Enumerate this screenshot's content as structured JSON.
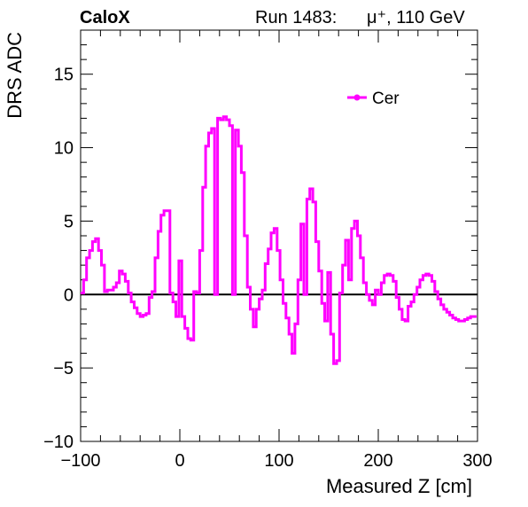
{
  "header": {
    "experiment": "CaloX",
    "run_info": "Run 1483:",
    "particle": "μ⁺, 110 GeV"
  },
  "chart_data": {
    "type": "line",
    "style": "step",
    "xlabel": "Measured Z [cm]",
    "ylabel": "DRS ADC",
    "xlim": [
      -100,
      300
    ],
    "ylim": [
      -10,
      18
    ],
    "xticks": [
      "−100",
      "0",
      "100",
      "200",
      "300"
    ],
    "yticks": [
      "−10",
      "−5",
      "0",
      "5",
      "10",
      "15"
    ],
    "xtick_values": [
      -100,
      0,
      100,
      200,
      300
    ],
    "ytick_values": [
      -10,
      -5,
      0,
      5,
      10,
      15
    ],
    "zero_line": true,
    "legend": {
      "position": "top-right",
      "entries": [
        "Cer"
      ]
    },
    "series": [
      {
        "name": "Cer",
        "color": "#ff00ff",
        "x": [
          -100,
          -97,
          -94,
          -91,
          -88,
          -85,
          -82,
          -79,
          -76,
          -73,
          -70,
          -67,
          -64,
          -61,
          -58,
          -55,
          -52,
          -49,
          -46,
          -43,
          -40,
          -37,
          -34,
          -31,
          -28,
          -25,
          -22,
          -19,
          -16,
          -13,
          -10,
          -7,
          -4,
          -1,
          2,
          5,
          8,
          11,
          14,
          17,
          20,
          23,
          26,
          29,
          32,
          35,
          38,
          41,
          44,
          47,
          50,
          53,
          56,
          59,
          62,
          65,
          68,
          71,
          74,
          77,
          80,
          83,
          86,
          89,
          92,
          95,
          98,
          101,
          104,
          107,
          110,
          113,
          116,
          119,
          122,
          125,
          128,
          131,
          134,
          137,
          140,
          143,
          146,
          149,
          152,
          155,
          158,
          161,
          164,
          167,
          170,
          173,
          176,
          179,
          182,
          185,
          188,
          191,
          194,
          197,
          200,
          203,
          206,
          209,
          212,
          215,
          218,
          221,
          224,
          227,
          230,
          233,
          236,
          239,
          242,
          245,
          248,
          251,
          254,
          257,
          260,
          263,
          266,
          269,
          272,
          275,
          278,
          281,
          284,
          287,
          290,
          293,
          296
        ],
        "y": [
          0.1,
          1.0,
          2.5,
          3.0,
          3.6,
          3.8,
          3.0,
          2.0,
          0.2,
          0.3,
          0.3,
          0.5,
          0.8,
          1.6,
          1.4,
          0.9,
          0.1,
          -0.5,
          -0.9,
          -1.3,
          -1.5,
          -1.4,
          -1.3,
          -0.2,
          0.2,
          2.5,
          4.3,
          5.4,
          5.7,
          5.7,
          0.1,
          -0.5,
          -1.5,
          2.3,
          -1.5,
          -2.3,
          -3.0,
          -3.1,
          0.2,
          0.1,
          3.0,
          7.3,
          10.1,
          11.0,
          11.3,
          0.0,
          12.0,
          11.9,
          12.1,
          11.9,
          11.5,
          0.0,
          11.2,
          10.1,
          8.3,
          4.0,
          0.5,
          -1.0,
          -2.2,
          -1.0,
          -0.3,
          0.3,
          2.1,
          3.1,
          4.2,
          4.5,
          3.0,
          1.0,
          -0.6,
          -1.6,
          -2.7,
          -4.0,
          -2.0,
          1.0,
          4.8,
          0.0,
          6.5,
          7.2,
          6.3,
          3.6,
          1.6,
          -0.6,
          -1.8,
          1.5,
          -2.7,
          -4.7,
          -4.5,
          0.1,
          2.0,
          3.7,
          1.0,
          4.5,
          5.0,
          4.0,
          2.5,
          0.8,
          0.0,
          -0.4,
          -0.7,
          0.3,
          0.0,
          0.8,
          1.3,
          1.4,
          1.3,
          0.9,
          -0.2,
          -1.0,
          -1.7,
          -1.8,
          -0.8,
          -0.5,
          0.0,
          0.5,
          1.0,
          1.3,
          1.4,
          1.3,
          0.9,
          0.2,
          -0.3,
          -0.7,
          -1.0,
          -1.2,
          -1.4,
          -1.6,
          -1.7,
          -1.8,
          -1.8,
          -1.7,
          -1.6,
          -1.5,
          -1.5
        ]
      }
    ]
  }
}
